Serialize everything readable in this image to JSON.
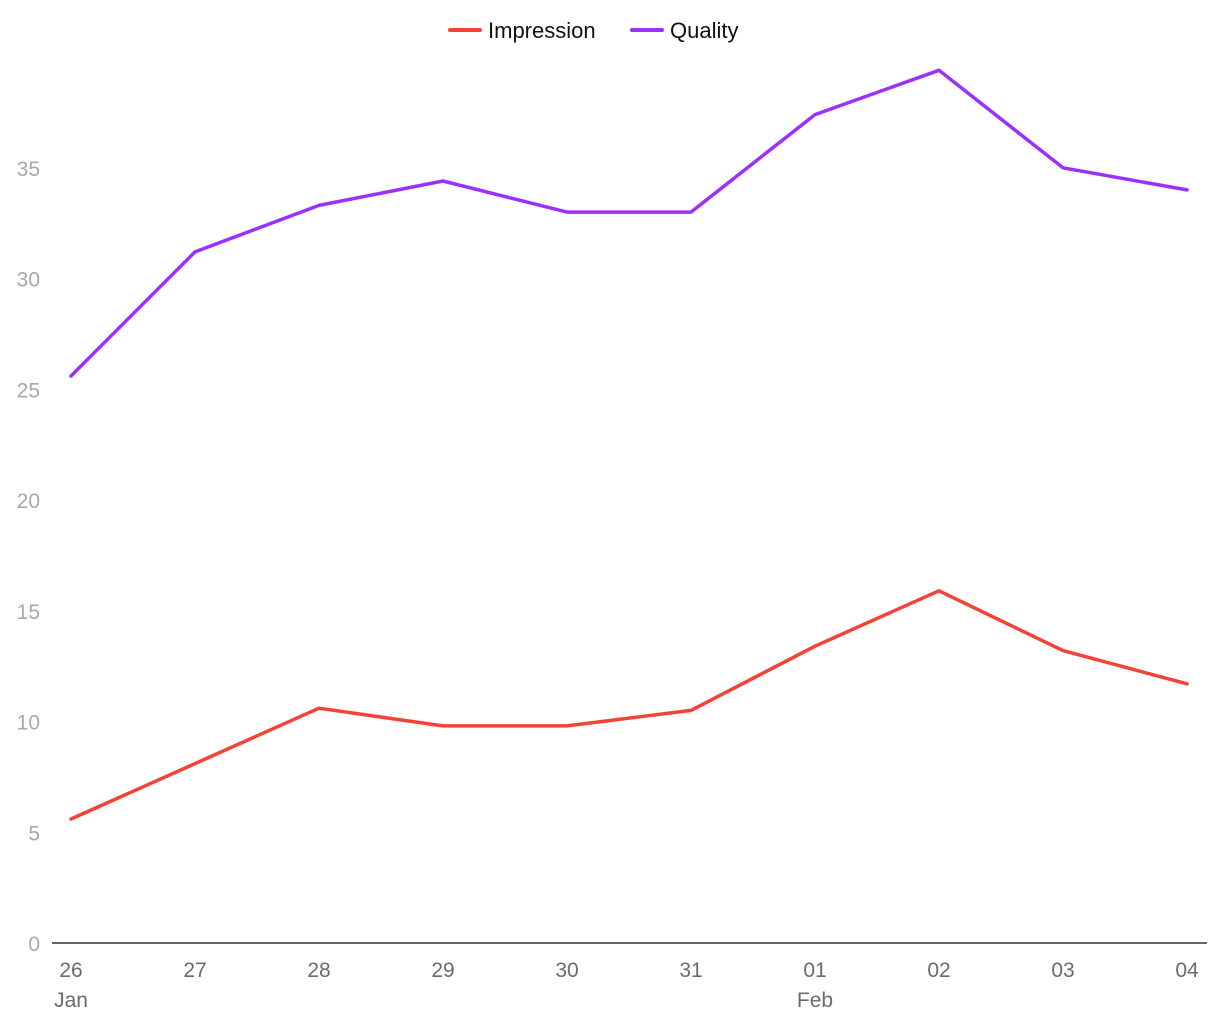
{
  "chart_data": {
    "type": "line",
    "title": "",
    "xlabel": "",
    "ylabel": "",
    "categories": [
      "26",
      "27",
      "28",
      "29",
      "30",
      "31",
      "01",
      "02",
      "03",
      "04"
    ],
    "category_sublabels": [
      "Jan",
      "",
      "",
      "",
      "",
      "",
      "Feb",
      "",
      "",
      ""
    ],
    "ylim": [
      0,
      40
    ],
    "yticks": [
      0,
      5,
      10,
      15,
      20,
      25,
      30,
      35
    ],
    "grid": false,
    "legend_position": "top-center",
    "series": [
      {
        "name": "Impression",
        "color": "#f44336",
        "values": [
          5.6,
          8.1,
          10.6,
          9.8,
          9.8,
          10.5,
          13.4,
          15.9,
          13.2,
          11.7
        ]
      },
      {
        "name": "Quality",
        "color": "#9b30ff",
        "values": [
          25.6,
          31.2,
          33.3,
          34.4,
          33.0,
          33.0,
          37.4,
          39.4,
          35.0,
          34.0
        ]
      }
    ]
  }
}
